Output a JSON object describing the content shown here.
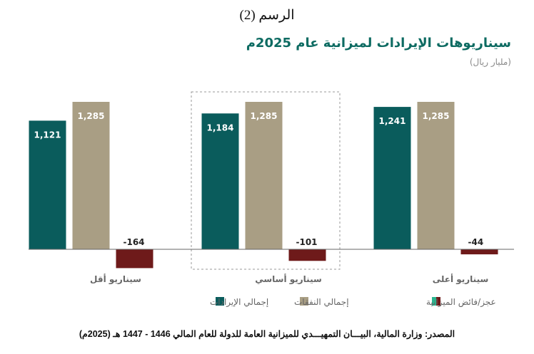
{
  "figure_caption": "الرسم (2)",
  "source_note": "المصدر: وزارة المالية، البيـــان التمهيـــدي للميزانية العامة للدولة للعام المالي 1446 - 1447 هـ (2025م)",
  "colors": {
    "revenue": "#0a5c5c",
    "expenses": "#a99e84",
    "deficit": "#6e1a1a",
    "surplus": "#2bb58f",
    "title": "#0d6b62",
    "axis": "#666666",
    "category_label": "#666666",
    "legend_text": "#666666"
  },
  "chart_data": {
    "type": "bar",
    "title": "سيناريوهات الإيرادات لميزانية عام 2025م",
    "subtitle": "(مليار ريال)",
    "categories": [
      "سيناريو أقل",
      "سيناريو أساسي",
      "سيناريو أعلى"
    ],
    "series": [
      {
        "name": "إجمالي الإيرادات",
        "key": "revenue",
        "values": [
          1121,
          1184,
          1241
        ],
        "labels": [
          "1,121",
          "1,184",
          "1,241"
        ]
      },
      {
        "name": "إجمالي النفقات",
        "key": "expenses",
        "values": [
          1285,
          1285,
          1285
        ],
        "labels": [
          "1,285",
          "1,285",
          "1,285"
        ]
      },
      {
        "name": "عجز/فائض الميزانية",
        "key": "deficit",
        "values": [
          -164,
          -101,
          -44
        ],
        "labels": [
          "-164",
          "-101",
          "-44"
        ]
      }
    ],
    "highlighted_category": "سيناريو أساسي",
    "ylim": [
      -200,
      1400
    ],
    "grid": false,
    "legend_position": "bottom",
    "legend_order": [
      "إجمالي الإيرادات",
      "إجمالي النفقات",
      "عجز/فائض الميزانية"
    ]
  }
}
